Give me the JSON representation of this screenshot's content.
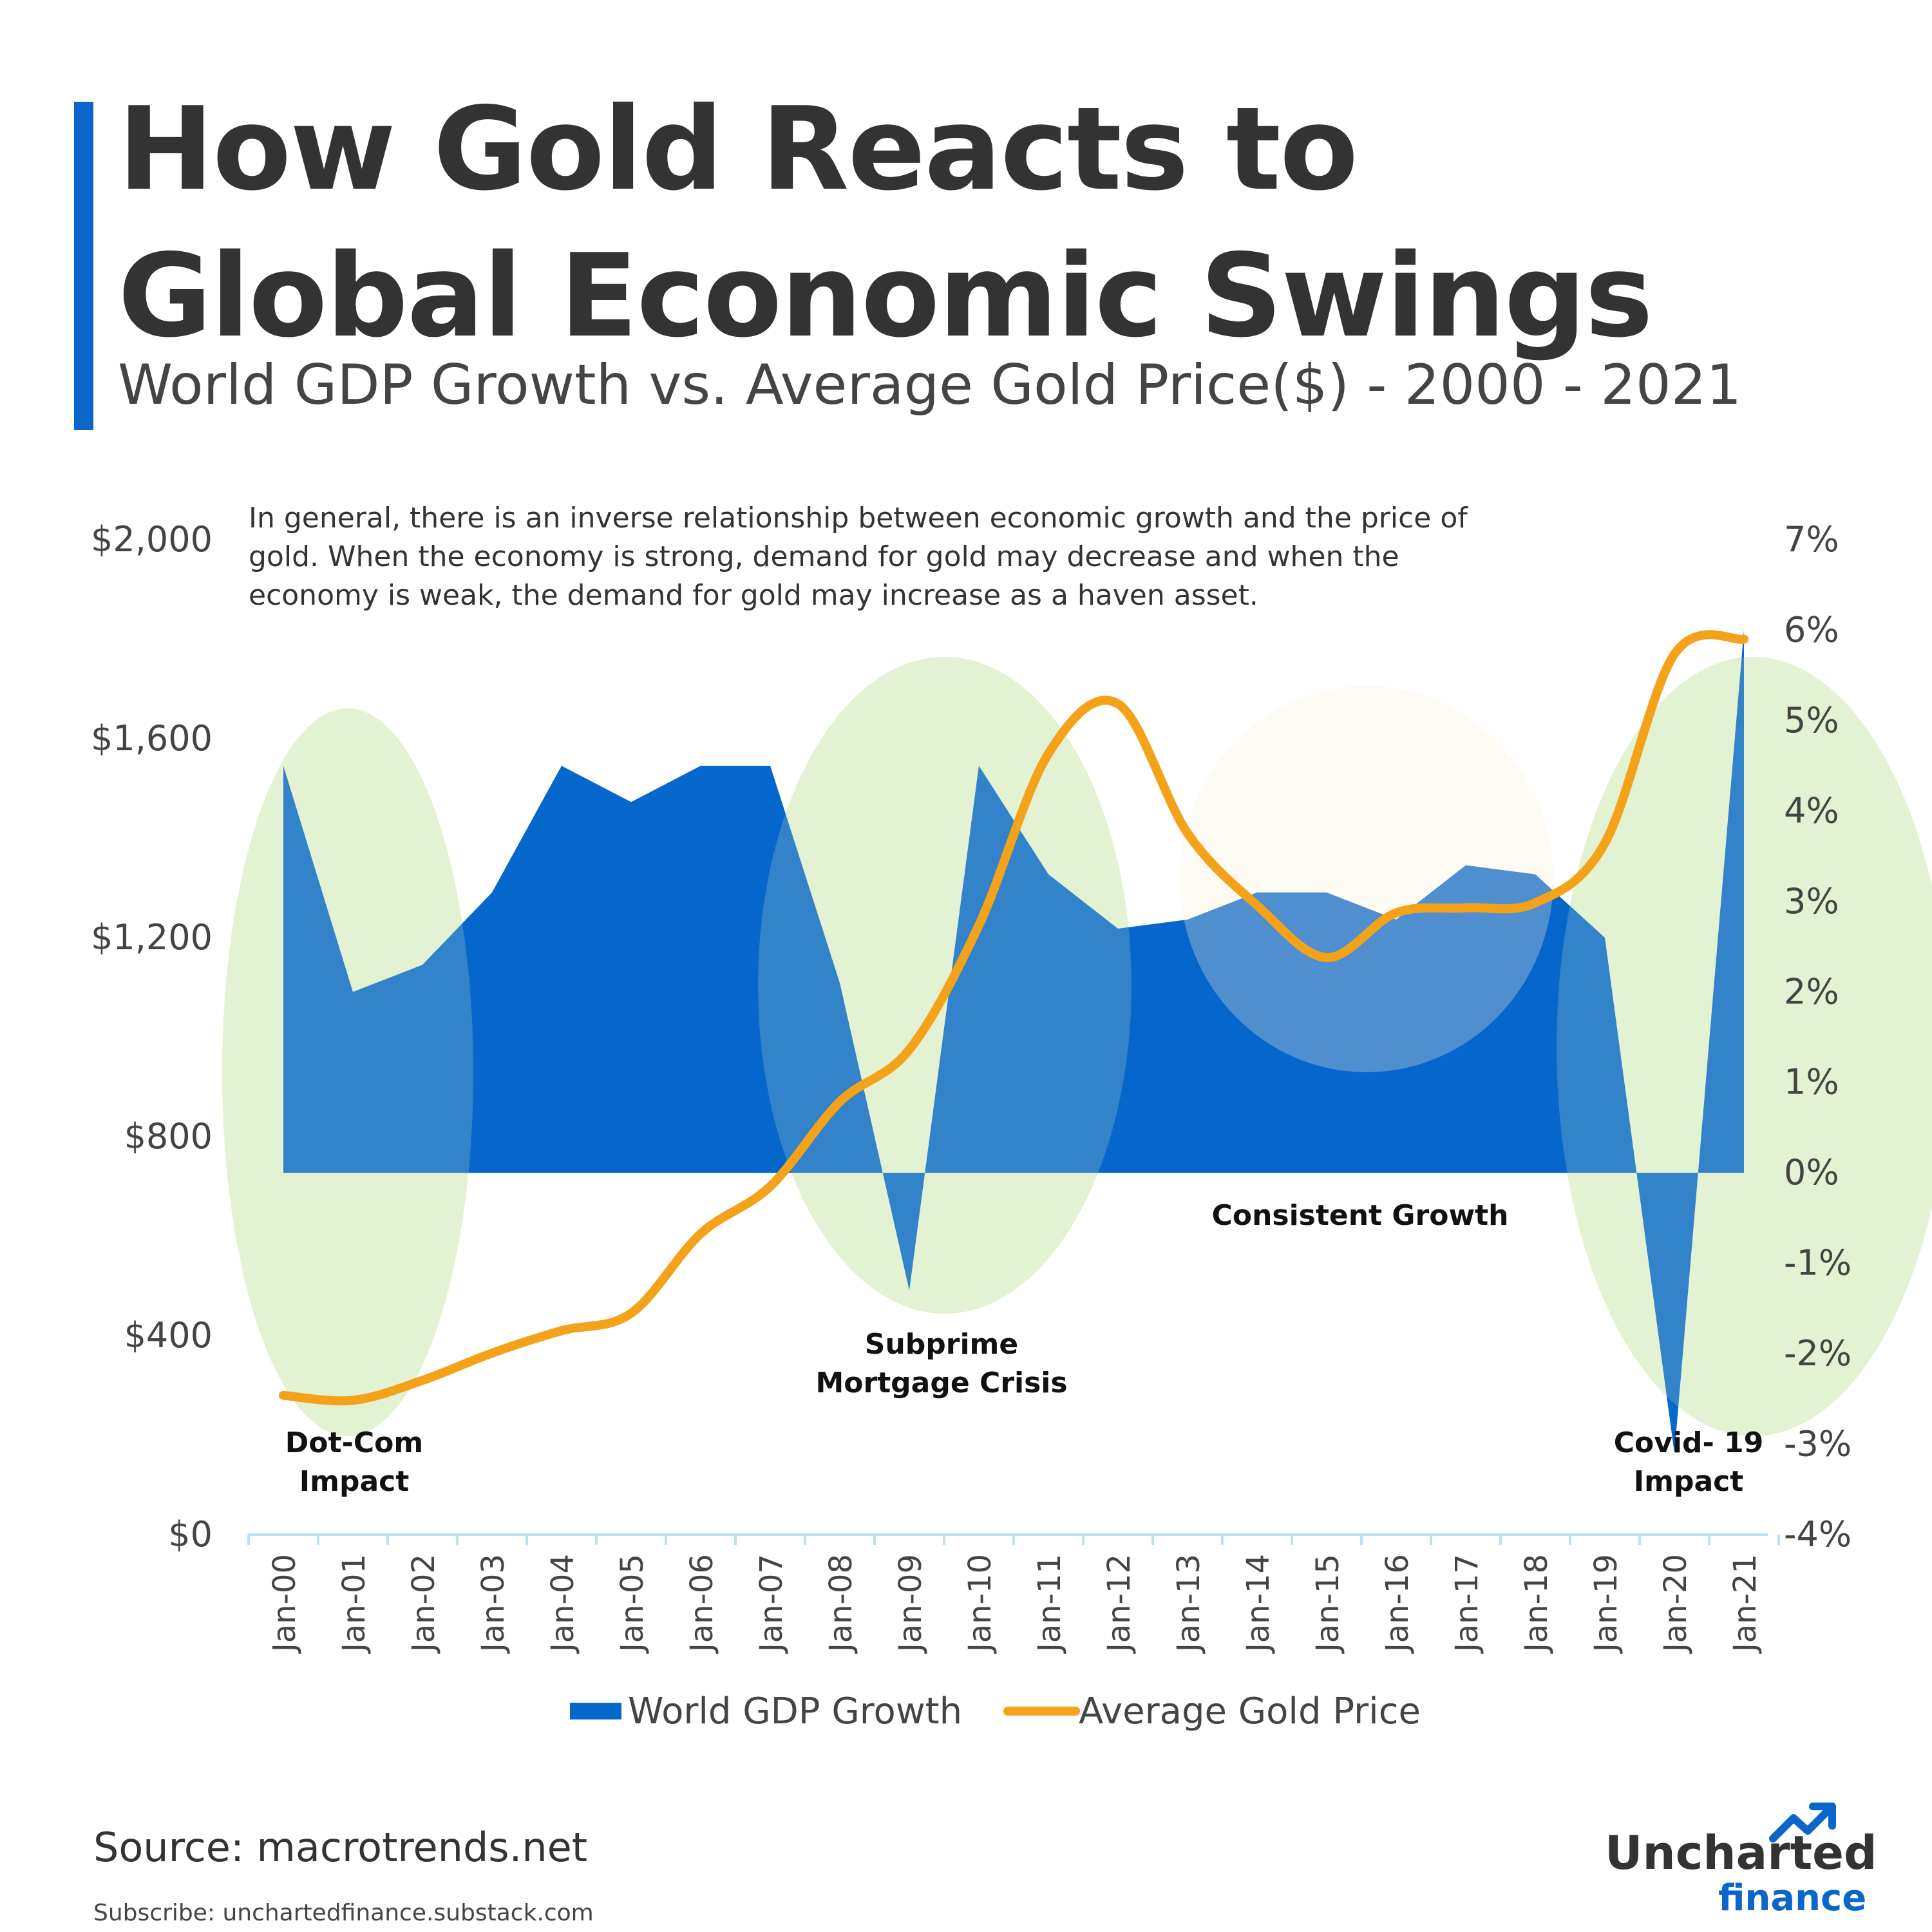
{
  "header": {
    "title": "How Gold Reacts to Global Economic Swings",
    "subtitle": "World GDP Growth vs. Average Gold Price($) - 2000 - 2021"
  },
  "note": "In general, there is an inverse relationship between economic growth and the price of gold. When the economy is strong, demand for gold may decrease and when the economy is weak, the demand for gold may increase as a haven asset.",
  "footer": {
    "source": "Source: macrotrends.net",
    "subscribe": "Subscribe: unchartedfinance.substack.com"
  },
  "logo": {
    "word1": "Uncharted",
    "word2": "finance"
  },
  "colors": {
    "gdp_area": "#0566cc",
    "gold_line": "#f5a21b",
    "highlight_green": "#d6edbe",
    "highlight_orange": "#fdeedc",
    "brand_blue": "#0a66c8",
    "text": "#333333"
  },
  "chart_data": {
    "type": "area",
    "title": "How Gold Reacts to Global Economic Swings",
    "subtitle": "World GDP Growth vs. Average Gold Price($) - 2000 - 2021",
    "categories": [
      "Jan-00",
      "Jan-01",
      "Jan-02",
      "Jan-03",
      "Jan-04",
      "Jan-05",
      "Jan-06",
      "Jan-07",
      "Jan-08",
      "Jan-09",
      "Jan-10",
      "Jan-11",
      "Jan-12",
      "Jan-13",
      "Jan-14",
      "Jan-15",
      "Jan-16",
      "Jan-17",
      "Jan-18",
      "Jan-19",
      "Jan-20",
      "Jan-21"
    ],
    "series": [
      {
        "name": "World GDP Growth",
        "type": "area",
        "axis": "right",
        "values": [
          4.5,
          2.0,
          2.3,
          3.1,
          4.5,
          4.1,
          4.5,
          4.5,
          2.1,
          -1.3,
          4.5,
          3.3,
          2.7,
          2.8,
          3.1,
          3.1,
          2.8,
          3.4,
          3.3,
          2.6,
          -3.1,
          6.0
        ]
      },
      {
        "name": "Average Gold Price",
        "type": "line",
        "axis": "left",
        "values": [
          280,
          270,
          310,
          365,
          410,
          445,
          605,
          700,
          870,
          975,
          1225,
          1570,
          1670,
          1410,
          1265,
          1160,
          1250,
          1260,
          1270,
          1390,
          1770,
          1800
        ]
      }
    ],
    "y_left": {
      "ticks": [
        "$0",
        "$400",
        "$800",
        "$1,200",
        "$1,600",
        "$2,000"
      ],
      "range": [
        0,
        2000
      ]
    },
    "y_right": {
      "ticks": [
        "-4%",
        "-3%",
        "-2%",
        "-1%",
        "0%",
        "1%",
        "2%",
        "3%",
        "4%",
        "5%",
        "6%",
        "7%"
      ],
      "range": [
        -4,
        7
      ]
    },
    "legend": {
      "position": "bottom",
      "items": [
        "World GDP Growth",
        "Average Gold Price"
      ]
    },
    "annotations": [
      {
        "text": "Dot-Com Impact",
        "lines": [
          "Dot-Com",
          "Impact"
        ]
      },
      {
        "text": "Subprime Mortgage Crisis",
        "lines": [
          "Subprime",
          "Mortgage Crisis"
        ]
      },
      {
        "text": "Consistent Growth",
        "lines": [
          "Consistent Growth"
        ]
      },
      {
        "text": "Covid- 19 Impact",
        "lines": [
          "Covid- 19",
          "Impact"
        ]
      }
    ],
    "grid": false
  }
}
